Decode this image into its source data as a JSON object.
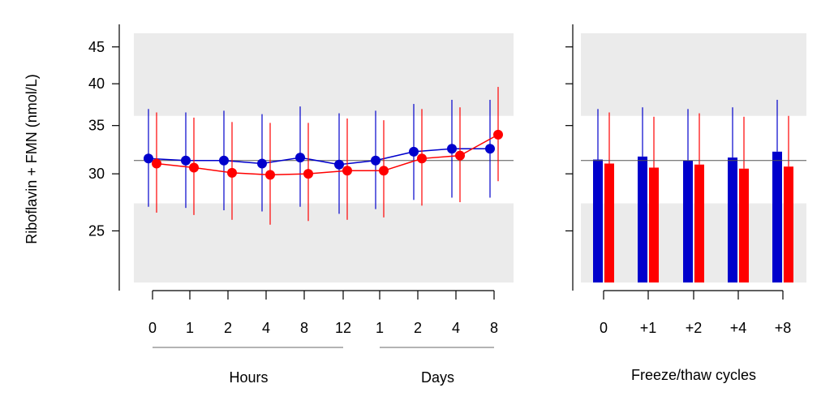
{
  "chart_data": [
    {
      "type": "line",
      "ylabel": "Riboflavin + FMN (nmol/L)",
      "y_scale": "log",
      "ylim": [
        21.2,
        47.0
      ],
      "yticks": [
        25,
        30,
        35,
        40,
        45
      ],
      "reference_line": 31.3,
      "reference_band": [
        27.3,
        36.1
      ],
      "categories": [
        "0",
        "1",
        "2",
        "4",
        "8",
        "12",
        "1",
        "2",
        "4",
        "8"
      ],
      "groups": [
        {
          "label": "Hours",
          "from": 0,
          "to": 5
        },
        {
          "label": "Days",
          "from": 6,
          "to": 9
        }
      ],
      "series": [
        {
          "color": "#0000cc",
          "values": [
            31.5,
            31.3,
            31.3,
            31.0,
            31.6,
            30.9,
            31.3,
            32.2,
            32.5,
            32.5
          ],
          "lower": [
            27.0,
            26.9,
            26.7,
            26.6,
            27.0,
            26.4,
            26.8,
            27.6,
            27.8,
            27.8
          ],
          "upper": [
            36.9,
            36.5,
            36.7,
            36.3,
            37.2,
            36.4,
            36.7,
            37.5,
            38.0,
            38.0
          ]
        },
        {
          "color": "#ff0000",
          "values": [
            31.0,
            30.6,
            30.1,
            29.9,
            30.0,
            30.3,
            30.3,
            31.5,
            31.8,
            34.0
          ],
          "lower": [
            26.5,
            26.3,
            25.9,
            25.5,
            25.8,
            25.9,
            26.1,
            27.1,
            27.4,
            29.3
          ],
          "upper": [
            36.5,
            35.9,
            35.4,
            35.3,
            35.3,
            35.8,
            35.6,
            36.9,
            37.1,
            39.6
          ]
        }
      ]
    },
    {
      "type": "bar",
      "xlabel": "Freeze/thaw cycles",
      "y_scale": "log",
      "ylim": [
        21.2,
        47.0
      ],
      "reference_line": 31.3,
      "reference_band": [
        27.3,
        36.1
      ],
      "categories": [
        "0",
        "+1",
        "+2",
        "+4",
        "+8"
      ],
      "series": [
        {
          "color": "#0000cc",
          "values": [
            31.4,
            31.7,
            31.3,
            31.6,
            32.2
          ],
          "lower": [
            26.8,
            27.1,
            26.8,
            27.0,
            27.5
          ],
          "upper": [
            36.9,
            37.1,
            36.9,
            37.1,
            38.0
          ]
        },
        {
          "color": "#ff0000",
          "values": [
            31.0,
            30.6,
            30.9,
            30.5,
            30.7
          ],
          "lower": [
            26.5,
            26.1,
            26.4,
            26.0,
            26.2
          ],
          "upper": [
            36.5,
            36.0,
            36.4,
            36.0,
            36.1
          ]
        }
      ]
    }
  ]
}
